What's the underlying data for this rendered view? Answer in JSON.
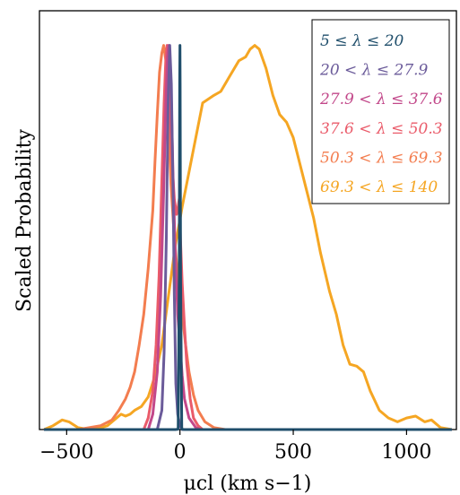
{
  "chart_data": {
    "type": "line",
    "xlabel": "μcl (km s−1)",
    "ylabel": "Scaled Probability",
    "xlim": [
      -620,
      1220
    ],
    "ylim": [
      0,
      1.09
    ],
    "xticks": [
      -500,
      0,
      500,
      1000
    ],
    "xtick_labels": [
      "−500",
      "0",
      "500",
      "1000"
    ],
    "yticks_visible": false,
    "grid": false,
    "legend": "top-right",
    "series": [
      {
        "name": "5 ≤ λ ≤ 20",
        "color": "#1f4e6b",
        "points": [
          [
            -600,
            0
          ],
          [
            -20,
            0
          ],
          [
            -8,
            0.001
          ],
          [
            -3,
            0.4
          ],
          [
            -1,
            0.9
          ],
          [
            0,
            1.0
          ],
          [
            1,
            0.9
          ],
          [
            3,
            0.4
          ],
          [
            8,
            0.001
          ],
          [
            20,
            0
          ],
          [
            1200,
            0
          ]
        ]
      },
      {
        "name": "20 < λ ≤ 27.9",
        "color": "#6b5b9a",
        "points": [
          [
            -600,
            0
          ],
          [
            -100,
            0
          ],
          [
            -80,
            0.05
          ],
          [
            -70,
            0.2
          ],
          [
            -60,
            0.5
          ],
          [
            -52,
            0.85
          ],
          [
            -45,
            1.0
          ],
          [
            -38,
            0.9
          ],
          [
            -30,
            0.6
          ],
          [
            -25,
            0.35
          ],
          [
            -18,
            0.12
          ],
          [
            -10,
            0.04
          ],
          [
            0,
            0.01
          ],
          [
            10,
            0
          ],
          [
            1200,
            0
          ]
        ]
      },
      {
        "name": "27.9 < λ ≤ 37.6",
        "color": "#c2488a",
        "points": [
          [
            -600,
            0
          ],
          [
            -140,
            0
          ],
          [
            -120,
            0.04
          ],
          [
            -100,
            0.15
          ],
          [
            -85,
            0.35
          ],
          [
            -72,
            0.62
          ],
          [
            -62,
            0.85
          ],
          [
            -55,
            0.97
          ],
          [
            -50,
            1.0
          ],
          [
            -45,
            0.98
          ],
          [
            -38,
            0.85
          ],
          [
            -30,
            0.65
          ],
          [
            -20,
            0.45
          ],
          [
            -10,
            0.3
          ],
          [
            0,
            0.22
          ],
          [
            10,
            0.14
          ],
          [
            20,
            0.08
          ],
          [
            40,
            0.03
          ],
          [
            70,
            0.005
          ],
          [
            90,
            0
          ],
          [
            1200,
            0
          ]
        ]
      },
      {
        "name": "37.6 < λ ≤ 50.3",
        "color": "#ea5b6a",
        "points": [
          [
            -600,
            0
          ],
          [
            -160,
            0
          ],
          [
            -140,
            0.03
          ],
          [
            -120,
            0.1
          ],
          [
            -105,
            0.22
          ],
          [
            -92,
            0.4
          ],
          [
            -80,
            0.65
          ],
          [
            -70,
            0.85
          ],
          [
            -62,
            0.97
          ],
          [
            -57,
            1.0
          ],
          [
            -52,
            0.97
          ],
          [
            -45,
            0.85
          ],
          [
            -35,
            0.7
          ],
          [
            -25,
            0.6
          ],
          [
            -15,
            0.56
          ],
          [
            -8,
            0.58
          ],
          [
            -3,
            0.6
          ],
          [
            2,
            0.5
          ],
          [
            10,
            0.38
          ],
          [
            20,
            0.27
          ],
          [
            30,
            0.17
          ],
          [
            45,
            0.08
          ],
          [
            60,
            0.03
          ],
          [
            80,
            0.01
          ],
          [
            100,
            0
          ],
          [
            1200,
            0
          ]
        ]
      },
      {
        "name": "50.3 < λ ≤ 69.3",
        "color": "#f37d4f",
        "points": [
          [
            -600,
            0
          ],
          [
            -450,
            0
          ],
          [
            -350,
            0.01
          ],
          [
            -300,
            0.025
          ],
          [
            -270,
            0.05
          ],
          [
            -240,
            0.08
          ],
          [
            -220,
            0.11
          ],
          [
            -200,
            0.15
          ],
          [
            -180,
            0.22
          ],
          [
            -160,
            0.3
          ],
          [
            -140,
            0.42
          ],
          [
            -120,
            0.57
          ],
          [
            -110,
            0.7
          ],
          [
            -100,
            0.82
          ],
          [
            -90,
            0.93
          ],
          [
            -80,
            0.98
          ],
          [
            -72,
            1.0
          ],
          [
            -62,
            0.96
          ],
          [
            -52,
            0.82
          ],
          [
            -40,
            0.64
          ],
          [
            -25,
            0.5
          ],
          [
            -10,
            0.4
          ],
          [
            0,
            0.35
          ],
          [
            10,
            0.3
          ],
          [
            25,
            0.22
          ],
          [
            40,
            0.15
          ],
          [
            60,
            0.09
          ],
          [
            80,
            0.05
          ],
          [
            110,
            0.02
          ],
          [
            150,
            0.005
          ],
          [
            200,
            0
          ],
          [
            1200,
            0
          ]
        ]
      },
      {
        "name": "69.3 < λ ≤ 140",
        "color": "#f5a623",
        "points": [
          [
            -600,
            0
          ],
          [
            -560,
            0.01
          ],
          [
            -520,
            0.025
          ],
          [
            -490,
            0.02
          ],
          [
            -450,
            0.005
          ],
          [
            -400,
            0
          ],
          [
            -350,
            0.005
          ],
          [
            -320,
            0.01
          ],
          [
            -290,
            0.025
          ],
          [
            -260,
            0.04
          ],
          [
            -240,
            0.035
          ],
          [
            -220,
            0.04
          ],
          [
            -200,
            0.05
          ],
          [
            -170,
            0.06
          ],
          [
            -140,
            0.085
          ],
          [
            -110,
            0.14
          ],
          [
            -80,
            0.22
          ],
          [
            -50,
            0.35
          ],
          [
            -20,
            0.48
          ],
          [
            10,
            0.58
          ],
          [
            50,
            0.7
          ],
          [
            100,
            0.85
          ],
          [
            150,
            0.87
          ],
          [
            180,
            0.88
          ],
          [
            220,
            0.92
          ],
          [
            260,
            0.96
          ],
          [
            290,
            0.97
          ],
          [
            310,
            0.99
          ],
          [
            330,
            1.0
          ],
          [
            350,
            0.99
          ],
          [
            380,
            0.94
          ],
          [
            410,
            0.87
          ],
          [
            440,
            0.82
          ],
          [
            470,
            0.8
          ],
          [
            500,
            0.76
          ],
          [
            530,
            0.69
          ],
          [
            560,
            0.62
          ],
          [
            590,
            0.55
          ],
          [
            620,
            0.46
          ],
          [
            660,
            0.36
          ],
          [
            690,
            0.3
          ],
          [
            720,
            0.22
          ],
          [
            750,
            0.17
          ],
          [
            780,
            0.165
          ],
          [
            810,
            0.15
          ],
          [
            840,
            0.1
          ],
          [
            880,
            0.05
          ],
          [
            920,
            0.03
          ],
          [
            960,
            0.02
          ],
          [
            1000,
            0.03
          ],
          [
            1040,
            0.035
          ],
          [
            1080,
            0.02
          ],
          [
            1110,
            0.025
          ],
          [
            1150,
            0.005
          ],
          [
            1200,
            0
          ]
        ]
      }
    ]
  }
}
